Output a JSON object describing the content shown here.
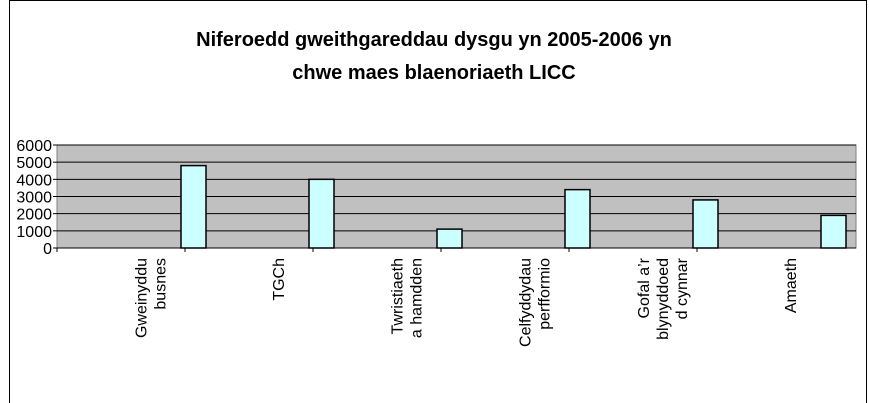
{
  "chart_data": {
    "type": "bar",
    "title": [
      "Niferoedd gweithgareddau dysgu yn 2005-2006 yn",
      "chwe maes blaenoriaeth LICC"
    ],
    "categories": [
      "Gweinyddu\nbusnes",
      "TGCh",
      "Twristiaeth\na hamdden",
      "Celfyddydau\nperfformio",
      "Gofal a’r\nblynyddoed\nd cynnar",
      "Amaeth"
    ],
    "values": [
      4800,
      4000,
      1100,
      3400,
      2800,
      1900
    ],
    "color": "#ccffff",
    "ylim": [
      0,
      6000
    ],
    "yticks": [
      0,
      1000,
      2000,
      3000,
      4000,
      5000,
      6000
    ],
    "grid": true
  }
}
